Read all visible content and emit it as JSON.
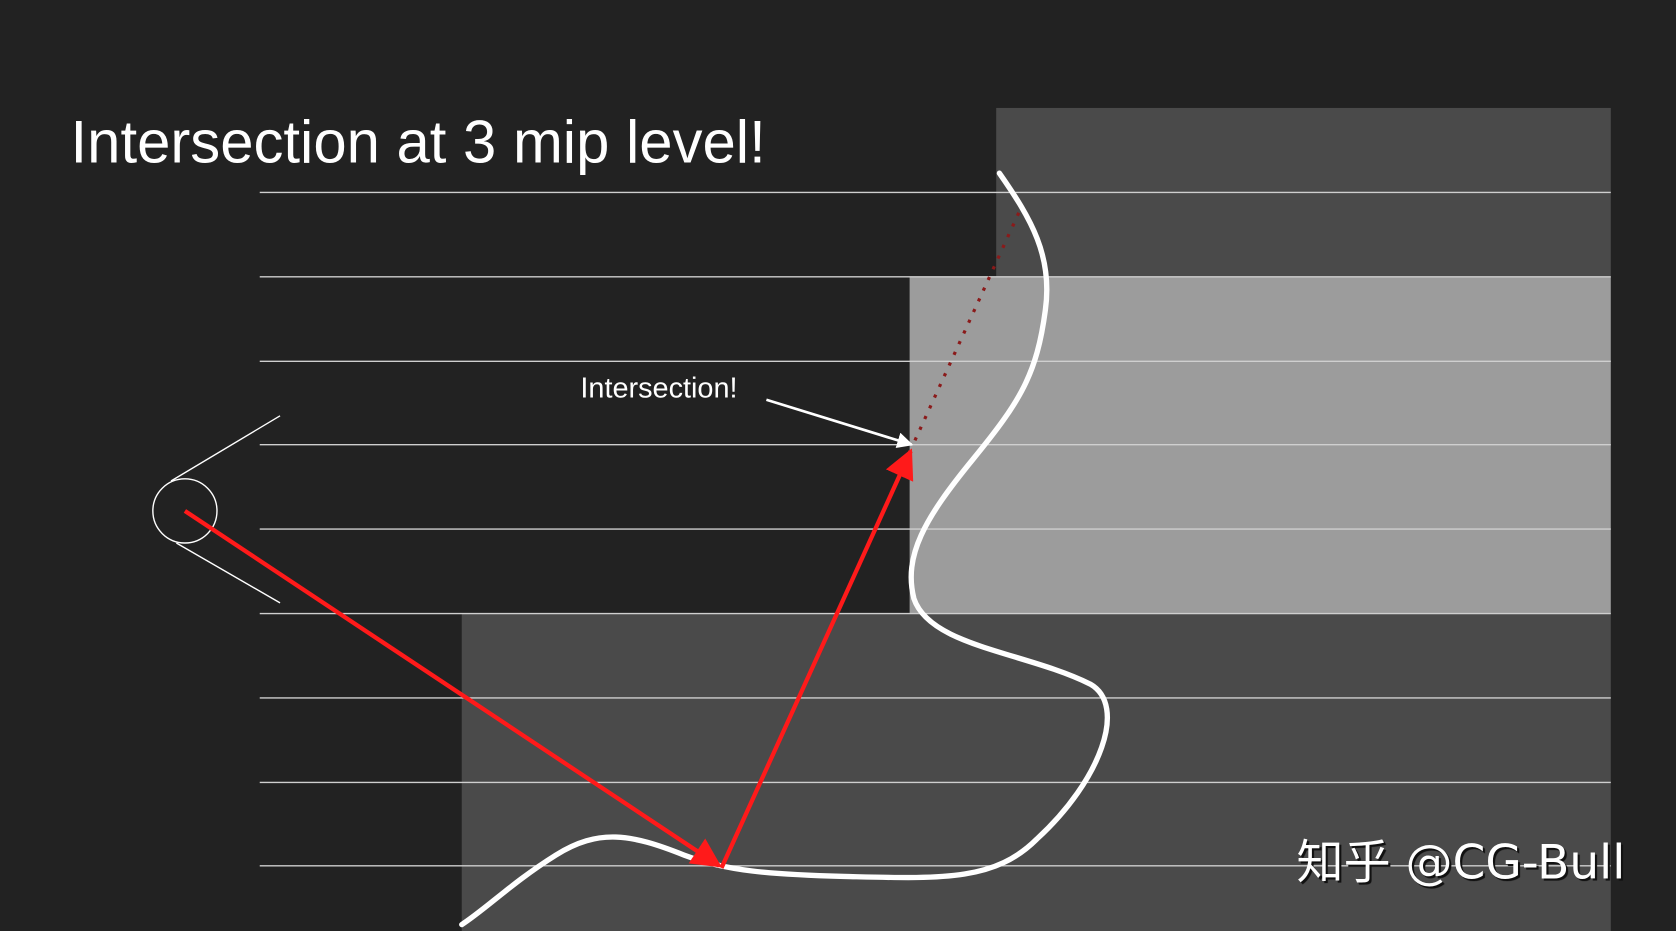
{
  "title": "Intersection at 3 mip level!",
  "label": "Intersection!",
  "watermark": "知乎 @CG-Bull",
  "colors": {
    "background": "#222222",
    "mip_dark": "#4a4a4a",
    "mip_light": "#9c9c9c",
    "ray": "#ff1a1a",
    "dotted_ray": "#8b1a1a",
    "surface": "#ffffff"
  }
}
